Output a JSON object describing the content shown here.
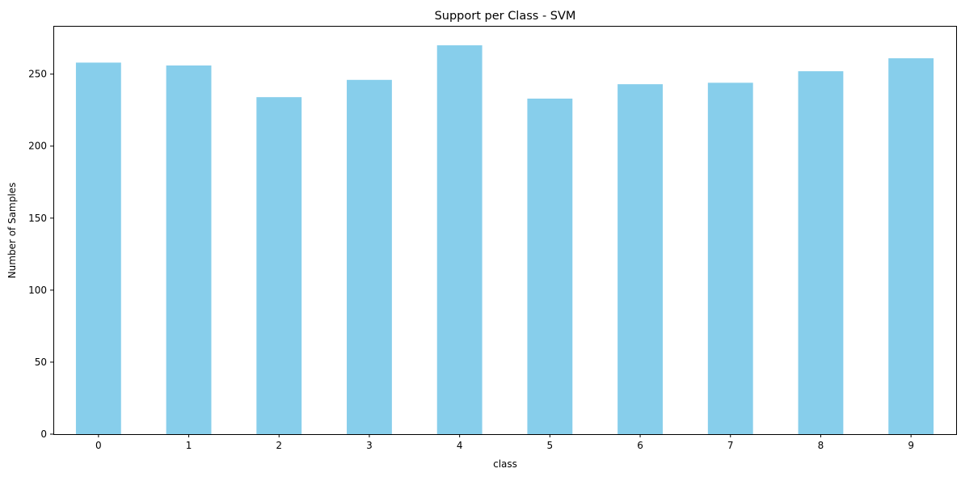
{
  "chart_data": {
    "type": "bar",
    "title": "Support per Class - SVM",
    "xlabel": "class",
    "ylabel": "Number of Samples",
    "categories": [
      "0",
      "1",
      "2",
      "3",
      "4",
      "5",
      "6",
      "7",
      "8",
      "9"
    ],
    "values": [
      258,
      256,
      234,
      246,
      270,
      233,
      243,
      244,
      252,
      261
    ],
    "ylim": [
      0,
      283.5
    ],
    "yticks": [
      0,
      50,
      100,
      150,
      200,
      250
    ],
    "grid": false,
    "legend": "none",
    "bar_color": "#87CEEB"
  }
}
